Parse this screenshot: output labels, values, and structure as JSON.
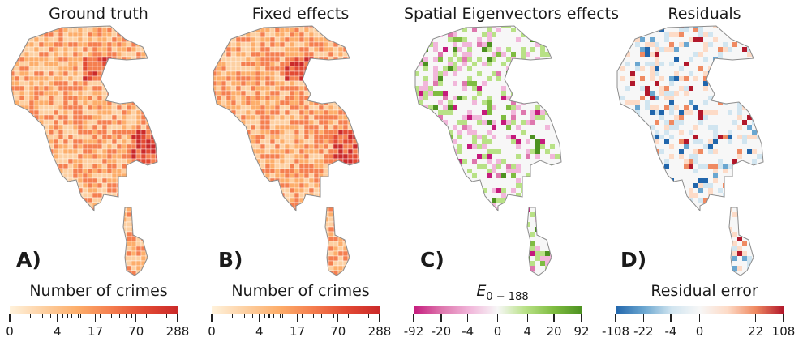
{
  "chart_data": [
    {
      "type": "choropleth-map",
      "panel_label": "A)",
      "title": "Ground truth",
      "colorbar": {
        "label": "Number of crimes",
        "colormap": [
          "#fff2dc",
          "#fdd0a2",
          "#fdae6b",
          "#f57f4f",
          "#e34a33",
          "#cb2a2a"
        ],
        "scale": "log",
        "tick_labels": [
          "0",
          "4",
          "17",
          "70",
          "288"
        ],
        "tick_values": [
          0,
          4,
          17,
          70,
          288
        ],
        "minor_ticks": [
          1,
          2,
          3,
          5,
          6,
          7,
          8,
          9,
          10,
          20,
          30,
          40,
          50,
          60,
          100,
          200
        ]
      }
    },
    {
      "type": "choropleth-map",
      "panel_label": "B)",
      "title": "Fixed effects",
      "colorbar": {
        "label": "Number of crimes",
        "colormap": [
          "#fff2dc",
          "#fdd0a2",
          "#fdae6b",
          "#f57f4f",
          "#e34a33",
          "#cb2a2a"
        ],
        "scale": "log",
        "tick_labels": [
          "0",
          "4",
          "17",
          "70",
          "288"
        ],
        "tick_values": [
          0,
          4,
          17,
          70,
          288
        ],
        "minor_ticks": [
          1,
          2,
          3,
          5,
          6,
          7,
          8,
          9,
          10,
          20,
          30,
          40,
          50,
          60,
          100,
          200
        ]
      }
    },
    {
      "type": "choropleth-map",
      "panel_label": "C)",
      "title": "Spatial Eigenvectors effects",
      "colorbar": {
        "label_main": "E",
        "label_sub": "0 − 188",
        "colormap": [
          "#c51b7d",
          "#de77ae",
          "#f1b6da",
          "#f7f7f7",
          "#b8e186",
          "#7fbc41",
          "#4d9221"
        ],
        "scale": "symlog",
        "tick_labels": [
          "-92",
          "-20",
          "-4",
          "0",
          "4",
          "20",
          "92"
        ],
        "tick_values": [
          -92,
          -20,
          -4,
          0,
          4,
          20,
          92
        ]
      }
    },
    {
      "type": "choropleth-map",
      "panel_label": "D)",
      "title": "Residuals",
      "colorbar": {
        "label": "Residual error",
        "colormap": [
          "#2166ac",
          "#6aa6d0",
          "#d1e5f0",
          "#f7f7f7",
          "#fddbc7",
          "#ef8a62",
          "#b2182b"
        ],
        "scale": "symlog",
        "tick_labels": [
          "-108",
          "-22",
          "-4",
          "0",
          "22",
          "108"
        ],
        "tick_values": [
          -108,
          -22,
          -4,
          0,
          22,
          108
        ]
      }
    }
  ]
}
